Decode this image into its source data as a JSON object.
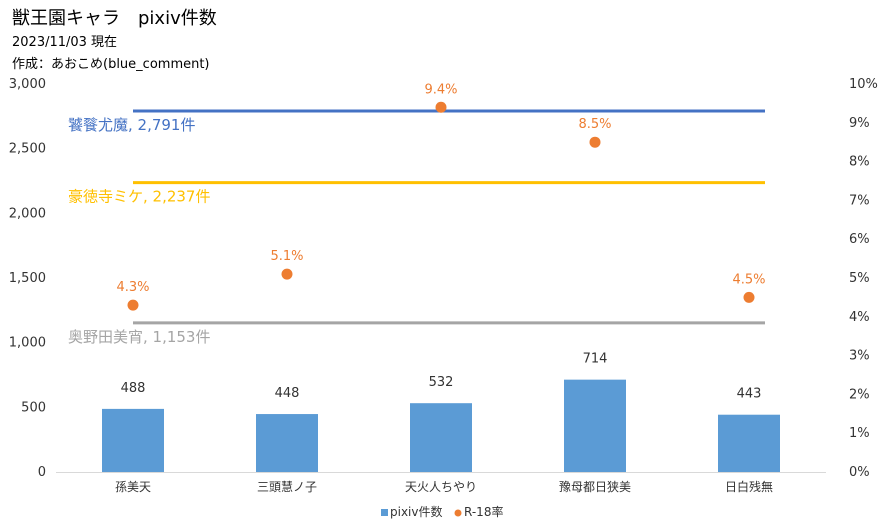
{
  "header": {
    "title": "獣王園キャラ　pixiv件数",
    "subtitle": "2023/11/03 現在",
    "author": "作成：あおこめ(blue_comment)"
  },
  "chart_data": {
    "type": "bar",
    "categories": [
      "孫美天",
      "三頭慧ノ子",
      "天火人ちやり",
      "豫母都日狭美",
      "日白残無"
    ],
    "series": [
      {
        "name": "pixiv件数",
        "type": "bar",
        "axis": "left",
        "color": "#5b9bd5",
        "values": [
          488,
          448,
          532,
          714,
          443
        ]
      },
      {
        "name": "R-18率",
        "type": "scatter",
        "axis": "right",
        "color": "#ed7d31",
        "values": [
          4.3,
          5.1,
          9.4,
          8.5,
          4.5
        ],
        "labels": [
          "4.3%",
          "5.1%",
          "9.4%",
          "8.5%",
          "4.5%"
        ]
      }
    ],
    "y_left": {
      "min": 0,
      "max": 3000,
      "ticks": [
        "0",
        "500",
        "1,000",
        "1,500",
        "2,000",
        "2,500",
        "3,000"
      ],
      "tick_values": [
        0,
        500,
        1000,
        1500,
        2000,
        2500,
        3000
      ]
    },
    "y_right": {
      "min": 0,
      "max": 10,
      "ticks": [
        "0%",
        "1%",
        "2%",
        "3%",
        "4%",
        "5%",
        "6%",
        "7%",
        "8%",
        "9%",
        "10%"
      ],
      "tick_values": [
        0,
        1,
        2,
        3,
        4,
        5,
        6,
        7,
        8,
        9,
        10
      ]
    },
    "reference_lines": [
      {
        "label": "饕餮尤魔, 2,791件",
        "value": 2791,
        "color": "#4472c4"
      },
      {
        "label": "豪徳寺ミケ, 2,237件",
        "value": 2237,
        "color": "#ffc000"
      },
      {
        "label": "奥野田美宵, 1,153件",
        "value": 1153,
        "color": "#a5a5a5"
      }
    ],
    "legend": {
      "position": "bottom"
    },
    "grid": false
  }
}
